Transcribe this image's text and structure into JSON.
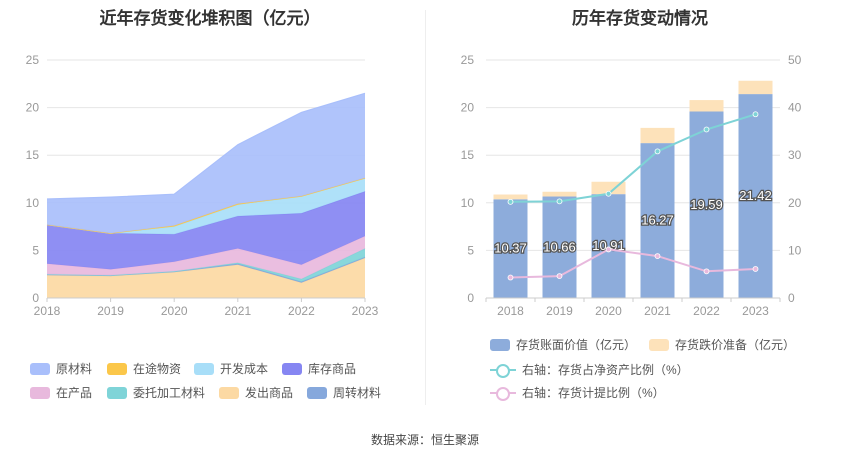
{
  "source_text": "数据来源：恒生聚源",
  "chart_data": [
    {
      "type": "area",
      "stacked": true,
      "title": "近年存货变化堆积图（亿元）",
      "x": [
        "2018",
        "2019",
        "2020",
        "2021",
        "2022",
        "2023"
      ],
      "ylim": [
        0,
        25
      ],
      "yticks": [
        "0",
        "5",
        "10",
        "15",
        "20",
        "25"
      ],
      "grid": true,
      "legend_position": "bottom",
      "series": [
        {
          "name": "发出商品",
          "color": "#FCD9A3",
          "values": [
            2.4,
            2.3,
            2.7,
            3.5,
            1.6,
            4.2
          ]
        },
        {
          "name": "周转材料",
          "color": "#86A8DC",
          "values": [
            0.1,
            0.1,
            0.1,
            0.1,
            0.1,
            0.1
          ]
        },
        {
          "name": "委托加工材料",
          "color": "#7FD4D8",
          "values": [
            0.0,
            0.0,
            0.0,
            0.1,
            0.3,
            0.9
          ]
        },
        {
          "name": "在产品",
          "color": "#E8B9DD",
          "values": [
            1.1,
            0.6,
            1.0,
            1.5,
            1.5,
            1.3
          ]
        },
        {
          "name": "库存商品",
          "color": "#8686F2",
          "values": [
            4.1,
            3.8,
            2.9,
            3.4,
            5.4,
            4.7
          ]
        },
        {
          "name": "开发成本",
          "color": "#A8DEF8",
          "values": [
            0.0,
            0.0,
            0.8,
            1.2,
            1.8,
            1.4
          ]
        },
        {
          "name": "在途物资",
          "color": "#FBC74A",
          "values": [
            0.0,
            0.0,
            0.1,
            0.1,
            0.0,
            0.0
          ]
        },
        {
          "name": "原材料",
          "color": "#A9BFFB",
          "values": [
            2.7,
            3.8,
            3.3,
            6.2,
            8.8,
            8.9
          ]
        }
      ],
      "legend_order": [
        "原材料",
        "在途物资",
        "开发成本",
        "库存商品",
        "在产品",
        "委托加工材料",
        "发出商品",
        "周转材料"
      ]
    },
    {
      "type": "bar",
      "stacked": true,
      "title": "历年存货变动情况",
      "categories": [
        "2018",
        "2019",
        "2020",
        "2021",
        "2022",
        "2023"
      ],
      "ylim": [
        0,
        25
      ],
      "yticks": [
        "0",
        "5",
        "10",
        "15",
        "20",
        "25"
      ],
      "y2lim": [
        0,
        50
      ],
      "y2ticks": [
        "0",
        "10",
        "20",
        "30",
        "40",
        "50"
      ],
      "grid": true,
      "legend_position": "bottom",
      "series": [
        {
          "name": "存货账面价值（亿元）",
          "color": "#8DACDB",
          "values": [
            10.37,
            10.66,
            10.91,
            16.27,
            19.59,
            21.42
          ],
          "labels": [
            "10.37",
            "10.66",
            "10.91",
            "16.27",
            "19.59",
            "21.42"
          ]
        },
        {
          "name": "存货跌价准备（亿元）",
          "color": "#FDE2BA",
          "values": [
            0.5,
            0.5,
            1.3,
            1.6,
            1.2,
            1.4
          ]
        }
      ],
      "lines": [
        {
          "name": "右轴：存货占净资产比例（%）",
          "color": "#7ED3D6",
          "values": [
            20.2,
            20.3,
            21.9,
            30.8,
            35.4,
            38.6
          ]
        },
        {
          "name": "右轴：存货计提比例（%）",
          "color": "#E8B9DD",
          "values": [
            4.3,
            4.6,
            10.2,
            8.8,
            5.6,
            6.1
          ]
        }
      ]
    }
  ]
}
